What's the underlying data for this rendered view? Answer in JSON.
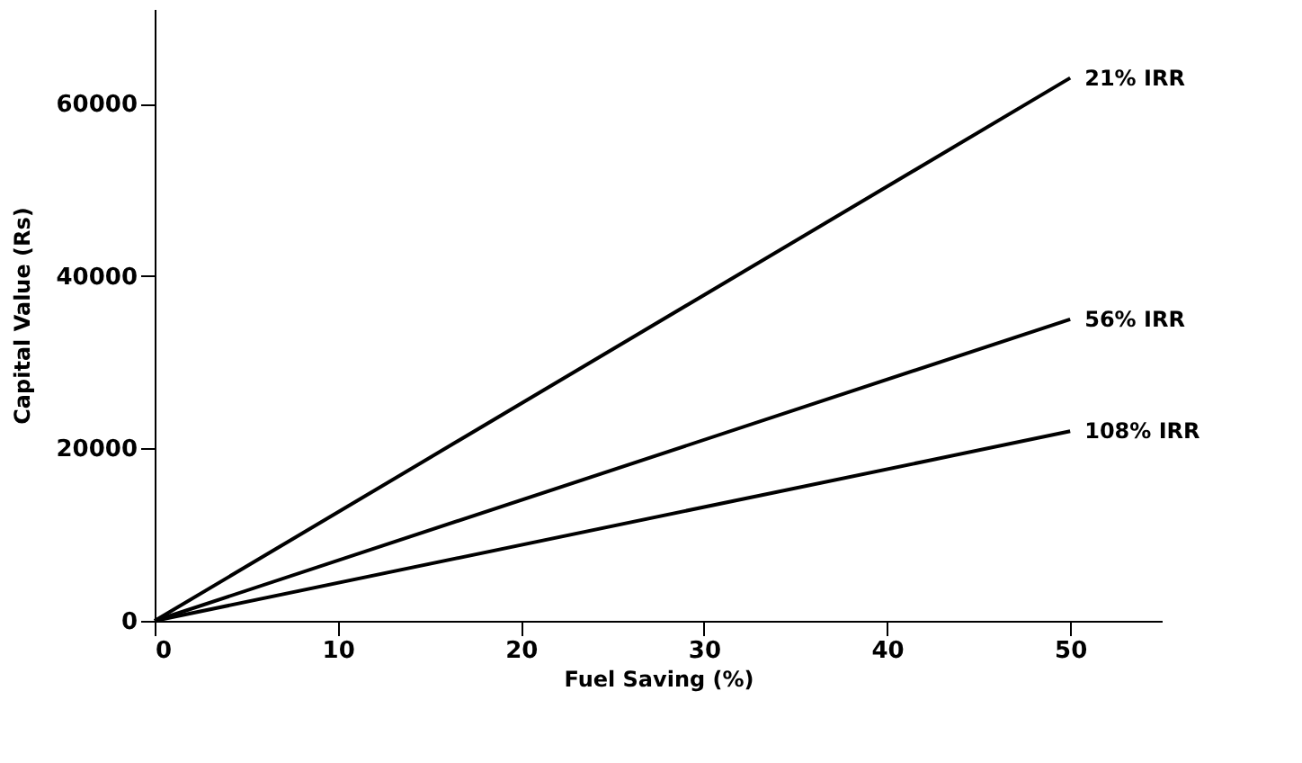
{
  "chart_data": {
    "type": "line",
    "xlabel": "Fuel Saving (%)",
    "ylabel": "Capital Value (Rs)",
    "x": [
      0,
      50
    ],
    "series": [
      {
        "name": "21% IRR",
        "color": "#000000",
        "values": [
          0,
          63000
        ]
      },
      {
        "name": "56% IRR",
        "color": "#000000",
        "values": [
          0,
          35000
        ]
      },
      {
        "name": "108% IRR",
        "color": "#000000",
        "values": [
          0,
          22000
        ]
      }
    ],
    "xlim": [
      0,
      55
    ],
    "ylim": [
      0,
      71000
    ],
    "xticks": [
      0,
      10,
      20,
      30,
      40,
      50
    ],
    "yticks": [
      0,
      20000,
      40000,
      60000
    ],
    "grid": false,
    "legend": false,
    "marker": "none",
    "line_style": "solid"
  }
}
